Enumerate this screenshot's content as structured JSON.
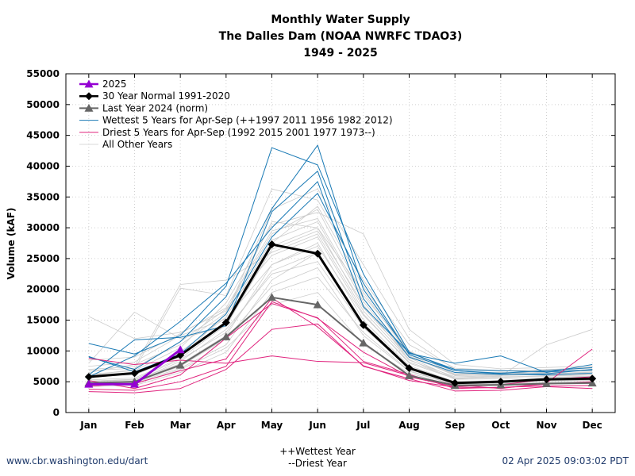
{
  "footer": {
    "url": "www.cbr.washington.edu/dart",
    "timestamp": "02 Apr 2025 09:03:02 PDT",
    "note_wettest": "++Wettest Year",
    "note_driest": "--Driest Year"
  },
  "chart_data": {
    "type": "line",
    "title": [
      "Monthly Water Supply",
      "The Dalles Dam (NOAA NWRFC TDAO3)",
      "1949 - 2025"
    ],
    "xlabel": "",
    "ylabel": "Volume (kAF)",
    "categories": [
      "Jan",
      "Feb",
      "Mar",
      "Apr",
      "May",
      "Jun",
      "Jul",
      "Aug",
      "Sep",
      "Oct",
      "Nov",
      "Dec"
    ],
    "ylim": [
      0,
      55000
    ],
    "yticks": [
      0,
      5000,
      10000,
      15000,
      20000,
      25000,
      30000,
      35000,
      40000,
      45000,
      50000,
      55000
    ],
    "grid": "dotted",
    "legend_position": "top-left",
    "colors": {
      "current": "#9400d3",
      "normal": "#000000",
      "lastyear": "#666666",
      "wettest": "#1a7ab5",
      "driest": "#e0247e",
      "others": "#cccccc"
    },
    "series": [
      {
        "name": "2025",
        "role": "current",
        "values": [
          4600,
          4600,
          10200,
          null,
          null,
          null,
          null,
          null,
          null,
          null,
          null,
          null
        ]
      },
      {
        "name": "30 Year Normal 1991-2020",
        "role": "normal",
        "values": [
          5800,
          6400,
          9300,
          14600,
          27300,
          25800,
          14200,
          7200,
          4800,
          5000,
          5400,
          5500
        ]
      },
      {
        "name": "Last Year 2024 (norm)",
        "role": "lastyear",
        "values": [
          4800,
          5000,
          7700,
          12300,
          18700,
          17500,
          11300,
          6000,
          4400,
          4500,
          4700,
          4800
        ]
      },
      {
        "name": "Wettest 5 Years for Apr-Sep (++1997 2011 1956 1982 2012)",
        "role": "wettest",
        "values": [
          11200,
          9500,
          12500,
          20500,
          43000,
          40200,
          22500,
          9800,
          6800,
          6300,
          6100,
          6400
        ]
      },
      {
        "name": "",
        "role": "wettest",
        "values": [
          9000,
          7000,
          11500,
          18800,
          33100,
          43400,
          20000,
          9600,
          8000,
          9200,
          6500,
          7800
        ]
      },
      {
        "name": "",
        "role": "wettest",
        "values": [
          6100,
          11800,
          12200,
          14100,
          32600,
          39200,
          18500,
          9000,
          6500,
          6200,
          6300,
          7000
        ]
      },
      {
        "name": "",
        "role": "wettest",
        "values": [
          5800,
          9200,
          14800,
          21000,
          30000,
          37500,
          17200,
          9700,
          7000,
          6800,
          6600,
          6900
        ]
      },
      {
        "name": "",
        "role": "wettest",
        "values": [
          9100,
          6600,
          9500,
          16000,
          28500,
          35600,
          21000,
          9400,
          6800,
          6400,
          6800,
          7300
        ]
      },
      {
        "name": "Driest 5 Years for Apr-Sep (1992 2015 2001 1977 1973--)",
        "role": "driest",
        "values": [
          3400,
          3200,
          3900,
          7000,
          13500,
          14400,
          7500,
          5500,
          3500,
          3600,
          4200,
          3900
        ]
      },
      {
        "name": "",
        "role": "driest",
        "values": [
          8800,
          7800,
          8500,
          8000,
          9200,
          8300,
          8100,
          6000,
          4500,
          3900,
          4800,
          10300
        ]
      },
      {
        "name": "",
        "role": "driest",
        "values": [
          3800,
          3600,
          5000,
          7500,
          18000,
          15300,
          9800,
          5800,
          4200,
          4500,
          5400,
          5800
        ]
      },
      {
        "name": "",
        "role": "driest",
        "values": [
          4300,
          4700,
          6800,
          8700,
          18600,
          13900,
          7600,
          5200,
          4100,
          4000,
          4600,
          5000
        ]
      },
      {
        "name": "",
        "role": "driest",
        "values": [
          5200,
          3900,
          6100,
          12100,
          17700,
          15400,
          8300,
          6200,
          3900,
          4100,
          4300,
          4400
        ]
      },
      {
        "name": "All Other Years",
        "role": "others",
        "values": [
          5000,
          5300,
          7900,
          12500,
          24000,
          27500,
          15000,
          7600,
          5000,
          5100,
          5200,
          5300
        ]
      },
      {
        "name": "",
        "role": "others",
        "values": [
          15600,
          12000,
          13000,
          16500,
          29000,
          33000,
          19000,
          10000,
          6500,
          6300,
          6500,
          6800
        ]
      },
      {
        "name": "",
        "role": "others",
        "values": [
          8000,
          16300,
          12000,
          14000,
          27000,
          30000,
          17000,
          9000,
          6300,
          6500,
          6400,
          6200
        ]
      },
      {
        "name": "",
        "role": "others",
        "values": [
          7000,
          7500,
          20800,
          21500,
          26000,
          29000,
          16500,
          8500,
          5800,
          6000,
          6200,
          6500
        ]
      },
      {
        "name": "",
        "role": "others",
        "values": [
          6000,
          7000,
          20200,
          19000,
          36300,
          34500,
          21500,
          11000,
          7200,
          6800,
          6900,
          7400
        ]
      },
      {
        "name": "",
        "role": "others",
        "values": [
          5500,
          6500,
          9000,
          16000,
          33000,
          36300,
          24000,
          12000,
          7000,
          6700,
          7000,
          7200
        ]
      },
      {
        "name": "",
        "role": "others",
        "values": [
          6200,
          6800,
          10500,
          17800,
          30500,
          32500,
          29000,
          13500,
          7800,
          7100,
          7300,
          7600
        ]
      },
      {
        "name": "",
        "role": "others",
        "values": [
          4500,
          4800,
          7200,
          11000,
          21500,
          26000,
          14500,
          7300,
          4800,
          5000,
          5100,
          5200
        ]
      },
      {
        "name": "",
        "role": "others",
        "values": [
          4200,
          4400,
          6500,
          9800,
          19500,
          22000,
          13000,
          6800,
          4600,
          4700,
          4900,
          5000
        ]
      },
      {
        "name": "",
        "role": "others",
        "values": [
          5700,
          6200,
          9800,
          15500,
          28000,
          31000,
          18000,
          8900,
          5600,
          5700,
          6000,
          6200
        ]
      },
      {
        "name": "",
        "role": "others",
        "values": [
          6800,
          7200,
          11500,
          16800,
          25500,
          28500,
          16000,
          8000,
          5500,
          5800,
          5900,
          6100
        ]
      },
      {
        "name": "",
        "role": "others",
        "values": [
          4900,
          5100,
          8300,
          13500,
          22500,
          24500,
          13800,
          7100,
          4900,
          5200,
          5500,
          5600
        ]
      },
      {
        "name": "",
        "role": "others",
        "values": [
          5300,
          5600,
          8800,
          14200,
          26500,
          29500,
          17500,
          8600,
          5400,
          5500,
          5700,
          5900
        ]
      },
      {
        "name": "",
        "role": "others",
        "values": [
          7500,
          8200,
          12500,
          15200,
          24000,
          27000,
          15800,
          8200,
          5600,
          5900,
          11000,
          13500
        ]
      },
      {
        "name": "",
        "role": "others",
        "values": [
          4700,
          4900,
          7500,
          12000,
          20500,
          23500,
          12500,
          6700,
          4500,
          4600,
          4800,
          4900
        ]
      },
      {
        "name": "",
        "role": "others",
        "values": [
          6500,
          7800,
          11000,
          16200,
          31000,
          30000,
          19500,
          9400,
          6100,
          6200,
          6600,
          6800
        ]
      },
      {
        "name": "",
        "role": "others",
        "values": [
          5100,
          5400,
          8600,
          13000,
          23000,
          26000,
          14200,
          7400,
          5000,
          5100,
          5300,
          5500
        ]
      },
      {
        "name": "",
        "role": "others",
        "values": [
          5900,
          6100,
          9200,
          14800,
          27500,
          33500,
          20500,
          9900,
          6200,
          6400,
          6700,
          7000
        ]
      },
      {
        "name": "",
        "role": "others",
        "values": [
          4400,
          4600,
          7000,
          10500,
          17500,
          19500,
          11000,
          6400,
          4300,
          4400,
          4600,
          4700
        ]
      },
      {
        "name": "",
        "role": "others",
        "values": [
          8500,
          9000,
          12800,
          17000,
          29500,
          31500,
          18500,
          9200,
          6000,
          6100,
          6300,
          6600
        ]
      }
    ]
  }
}
